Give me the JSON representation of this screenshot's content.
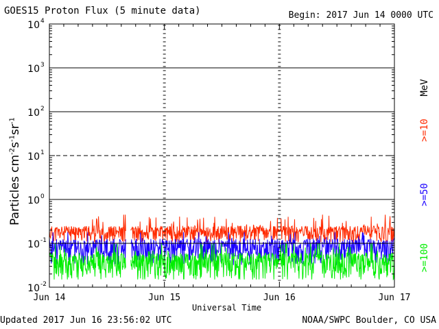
{
  "header": {
    "title": "GOES15 Proton Flux (5 minute data)",
    "begin": "Begin: 2017 Jun 14 0000 UTC"
  },
  "footer": {
    "updated": "Updated 2017 Jun 16 23:56:02 UTC",
    "credit": "NOAA/SWPC Boulder, CO USA"
  },
  "colors": {
    "ge10": "#ff2a00",
    "ge50": "#1a00ff",
    "ge100": "#00ee00",
    "axes": "#000000"
  },
  "chart_data": {
    "type": "line",
    "title": "GOES15 Proton Flux (5 minute data)",
    "xlabel": "Universal Time",
    "ylabel_parts": [
      "Particles cm",
      "-2",
      "s",
      "-1",
      "sr",
      "-1"
    ],
    "x_ticks": [
      "Jun 14",
      "Jun 15",
      "Jun 16",
      "Jun 17"
    ],
    "xlim_days": [
      0,
      3
    ],
    "y_scale": "log",
    "ylim": [
      0.01,
      10000
    ],
    "y_ticks": [
      {
        "base": "10",
        "exp": "-2"
      },
      {
        "base": "10",
        "exp": "-1"
      },
      {
        "base": "10",
        "exp": "0"
      },
      {
        "base": "10",
        "exp": "1"
      },
      {
        "base": "10",
        "exp": "2"
      },
      {
        "base": "10",
        "exp": "3"
      },
      {
        "base": "10",
        "exp": "4"
      }
    ],
    "threshold_lines": [
      {
        "value": 10,
        "style": "dashed"
      },
      {
        "value": 1,
        "style": "solid"
      },
      {
        "value": 100,
        "style": "solid"
      },
      {
        "value": 1000,
        "style": "solid"
      },
      {
        "value": 0.1,
        "style": "solid"
      }
    ],
    "energy_unit": "MeV",
    "series": [
      {
        "name": ">=10",
        "color_key": "ge10",
        "baseline": 0.17,
        "noise": 0.09,
        "max_value": 0.45,
        "seed": 11
      },
      {
        "name": ">=50",
        "color_key": "ge50",
        "baseline": 0.075,
        "noise": 0.06,
        "max_value": 0.18,
        "seed": 23
      },
      {
        "name": ">=100",
        "color_key": "ge100",
        "baseline": 0.035,
        "noise": 0.03,
        "max_value": 0.1,
        "seed": 37
      }
    ],
    "data_gap_days": [
      0.665,
      0.705
    ],
    "grid": false,
    "legend_placement": "right, rotated vertical"
  }
}
